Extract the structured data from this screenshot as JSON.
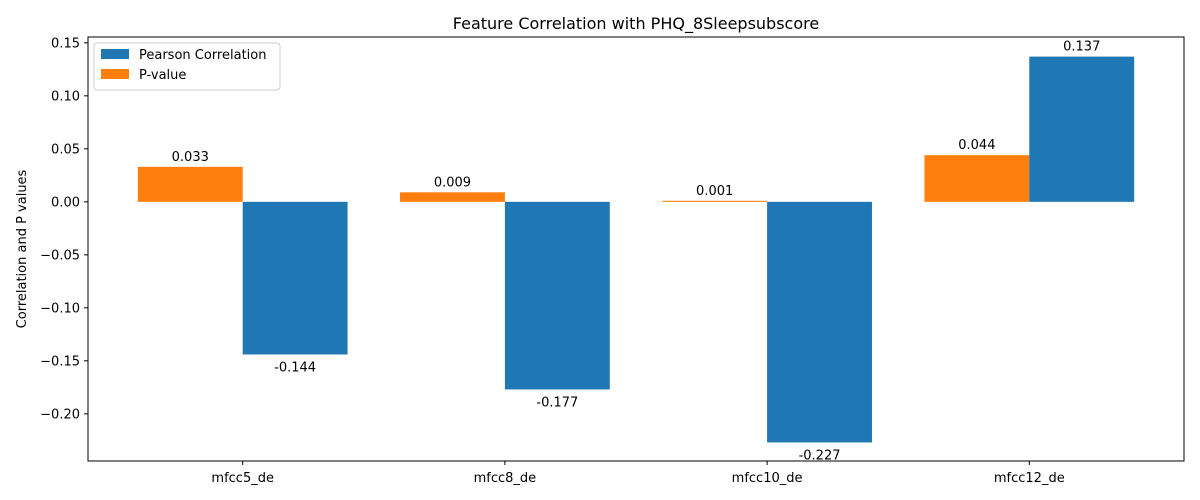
{
  "chart_data": {
    "type": "bar",
    "title": "Feature Correlation with PHQ_8Sleepsubscore",
    "xlabel": "",
    "ylabel": "Correlation and P values",
    "categories": [
      "mfcc5_de",
      "mfcc8_de",
      "mfcc10_de",
      "mfcc12_de"
    ],
    "series": [
      {
        "name": "Pearson Correlation",
        "color": "#1f77b4",
        "values": [
          -0.144,
          -0.177,
          -0.227,
          0.137
        ],
        "labels": [
          "-0.144",
          "-0.177",
          "-0.227",
          "0.137"
        ]
      },
      {
        "name": "P-value",
        "color": "#ff7f0e",
        "values": [
          0.033,
          0.009,
          0.001,
          0.044
        ],
        "labels": [
          "0.033",
          "0.009",
          "0.001",
          "0.044"
        ]
      }
    ],
    "ylim": [
      -0.2445,
      0.1555
    ],
    "yticks": [
      -0.2,
      -0.15,
      -0.1,
      -0.05,
      0.0,
      0.05,
      0.1,
      0.15
    ],
    "ytick_labels": [
      "−0.20",
      "−0.15",
      "−0.10",
      "−0.05",
      "0.00",
      "0.05",
      "0.10",
      "0.15"
    ],
    "grid": false,
    "legend_position": "top-left"
  }
}
